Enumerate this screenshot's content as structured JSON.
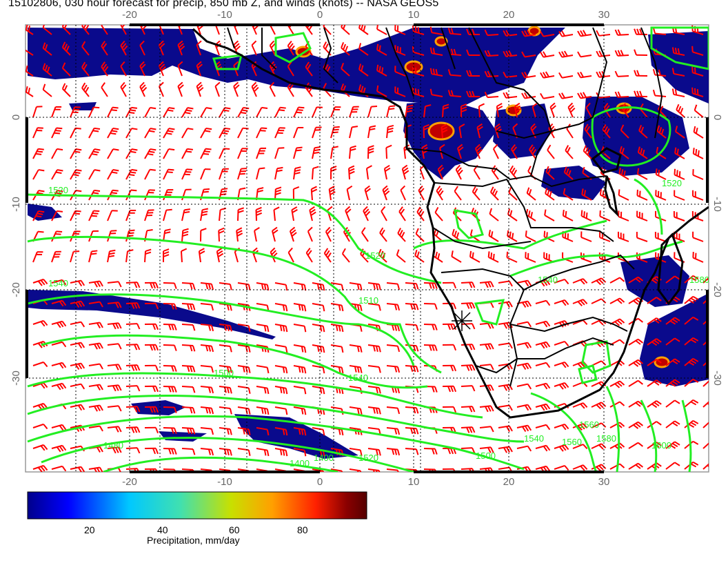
{
  "title": "15102806, 030 hour forecast for precip, 850 mb Z, and winds (knots) -- NASA GEOS5",
  "map": {
    "lon_ticks": [
      "-20",
      "-10",
      "0",
      "10",
      "20",
      "30"
    ],
    "lat_ticks": [
      "0",
      "-10",
      "-20",
      "-30"
    ],
    "contour_labels": [
      "1520",
      "1540",
      "1520",
      "1540",
      "1510",
      "1500",
      "1540",
      "1480",
      "1400",
      "1400",
      "1520",
      "1540",
      "1560",
      "1560",
      "1580",
      "1600",
      "1500",
      "1520",
      "1580"
    ],
    "colors": {
      "coast": "#000000",
      "contour": "#22ee22",
      "wind_barb": "#ff0000",
      "precip_low": "#0a0a8c",
      "precip_high": "#8b0000",
      "grid": "#000000",
      "frame": "#999999"
    }
  },
  "colorbar": {
    "ticks": [
      "20",
      "40",
      "60",
      "80"
    ],
    "label": "Precipitation, mm/day",
    "colors": [
      "#00008b",
      "#0000ff",
      "#00c8ff",
      "#40e0b0",
      "#c8e000",
      "#ffa000",
      "#ff2000",
      "#8b0000",
      "#550000"
    ]
  }
}
